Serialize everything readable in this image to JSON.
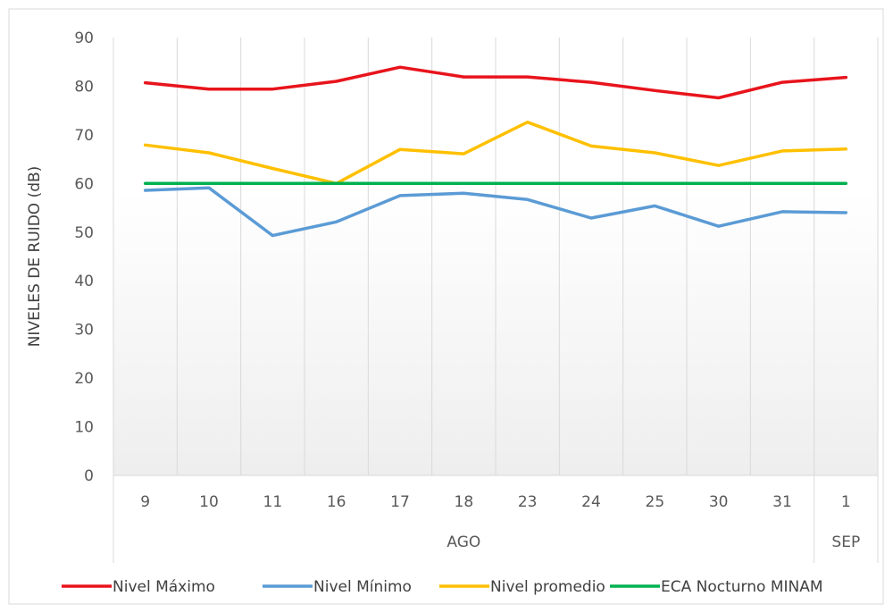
{
  "chart_data": {
    "type": "line",
    "title": "",
    "xlabel": "",
    "ylabel": "NIVELES DE RUIDO (dB)",
    "ylim": [
      0,
      90
    ],
    "yticks": [
      0,
      10,
      20,
      30,
      40,
      50,
      60,
      70,
      80,
      90
    ],
    "grid": "vertical",
    "legend": "bottom",
    "categories": [
      "9",
      "10",
      "11",
      "16",
      "17",
      "18",
      "23",
      "24",
      "25",
      "30",
      "31",
      "1"
    ],
    "groups": [
      {
        "label": "AGO",
        "count": 11
      },
      {
        "label": "SEP",
        "count": 1
      }
    ],
    "series": [
      {
        "name": "Nivel Máximo",
        "color": "#e8141c",
        "values": [
          80.7,
          79.4,
          79.4,
          81.0,
          83.9,
          81.9,
          81.9,
          80.8,
          79.1,
          77.6,
          80.8,
          81.8
        ]
      },
      {
        "name": "Nivel Mínimo",
        "color": "#5b9bd5",
        "values": [
          58.6,
          59.1,
          49.3,
          52.1,
          57.5,
          58.0,
          56.7,
          52.9,
          55.4,
          51.2,
          54.2,
          54.0
        ]
      },
      {
        "name": "Nivel promedio",
        "color": "#ffc000",
        "values": [
          67.9,
          66.3,
          63.1,
          60.0,
          67.0,
          66.1,
          72.6,
          67.7,
          66.3,
          63.7,
          66.7,
          67.1
        ]
      },
      {
        "name": "ECA Nocturno MINAM",
        "color": "#00b050",
        "values": [
          60,
          60,
          60,
          60,
          60,
          60,
          60,
          60,
          60,
          60,
          60,
          60
        ]
      }
    ]
  }
}
